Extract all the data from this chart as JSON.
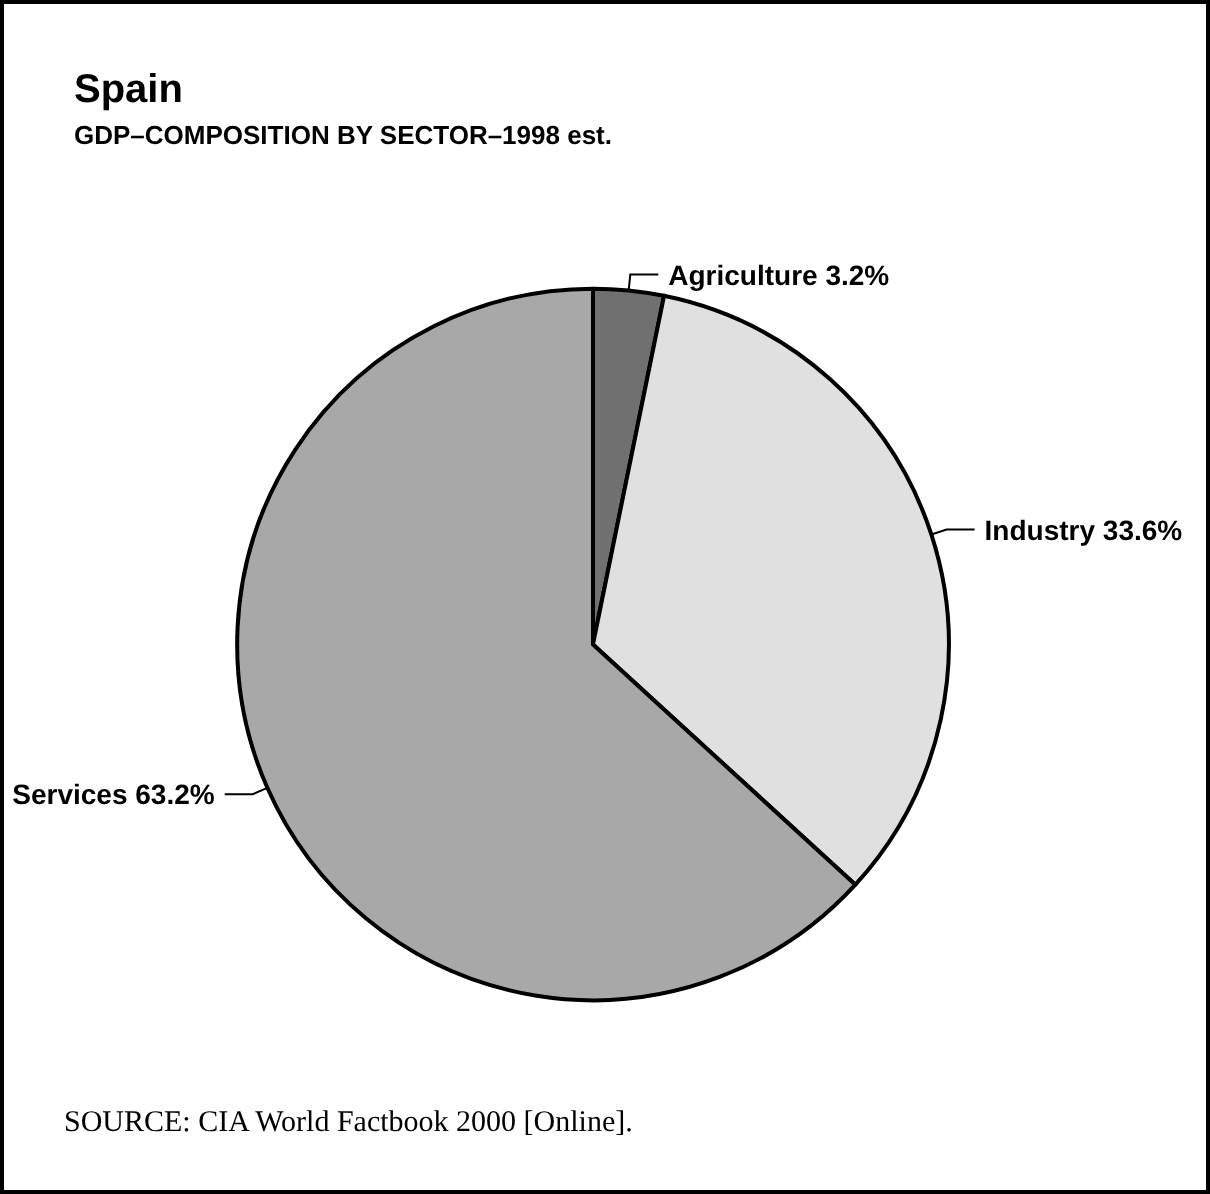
{
  "chart_data": {
    "type": "pie",
    "title": "Spain",
    "subtitle": "GDP–COMPOSITION BY SECTOR–1998 est.",
    "categories": [
      "Agriculture",
      "Industry",
      "Services"
    ],
    "values": [
      3.2,
      33.6,
      63.2
    ],
    "value_labels": [
      "3.2%",
      "33.6%",
      "63.2%"
    ],
    "colors": [
      "#707070",
      "#e0e0e0",
      "#a8a8a8"
    ],
    "legend": false,
    "annotations": [
      "SOURCE: CIA World Factbook 2000 [Online]."
    ]
  }
}
